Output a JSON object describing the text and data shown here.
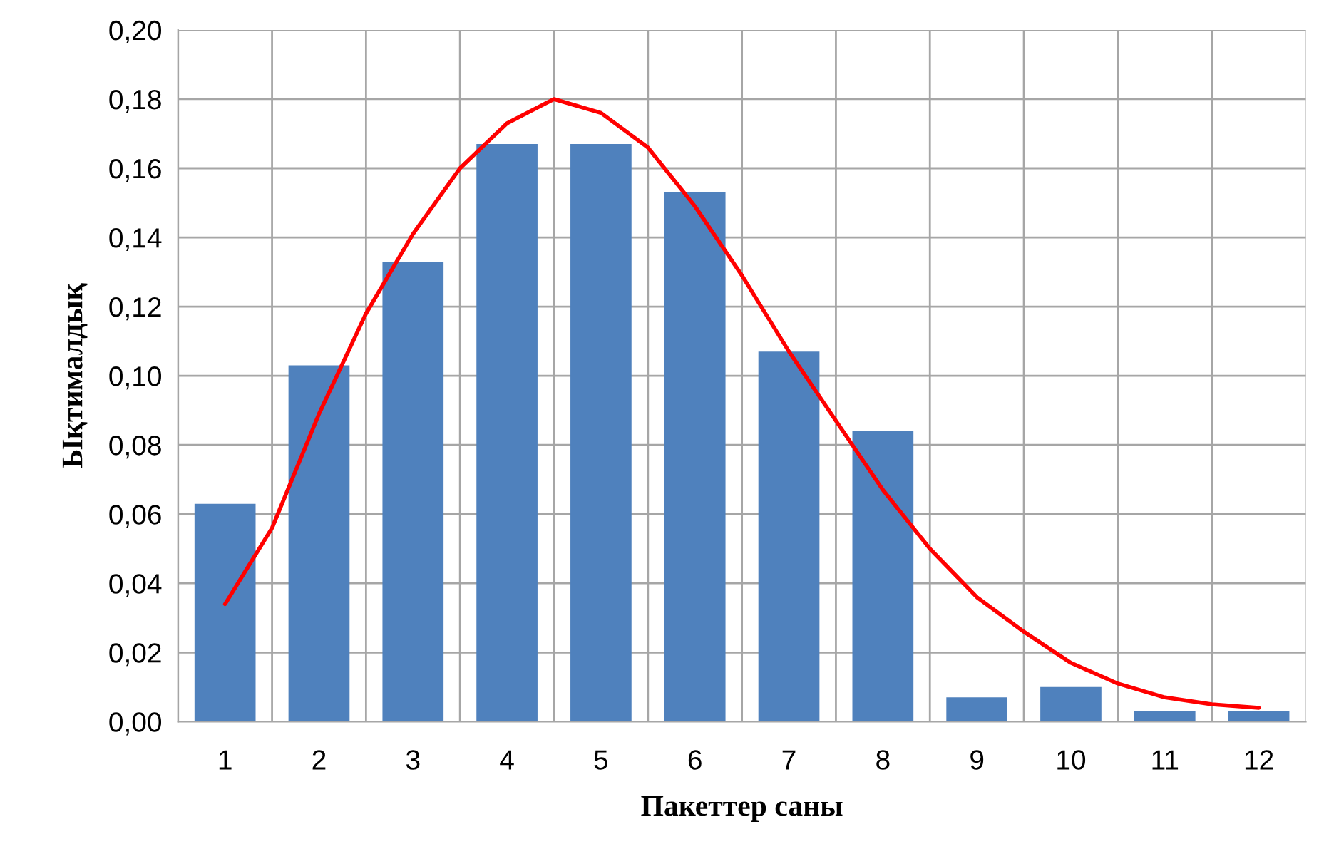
{
  "chart_data": {
    "type": "bar",
    "xlabel": "Пакеттер саны",
    "ylabel": "Ықтималдық",
    "x": [
      1,
      2,
      3,
      4,
      5,
      6,
      7,
      8,
      9,
      10,
      11,
      12
    ],
    "series": [
      {
        "color": "#4f81bd",
        "values": [
          0.063,
          0.103,
          0.133,
          0.167,
          0.167,
          0.153,
          0.107,
          0.084,
          0.007,
          0.01,
          0.003,
          0.003
        ]
      },
      {
        "type": "line",
        "color": "#ff0000",
        "x": [
          1,
          1.5,
          2,
          2.5,
          3,
          3.5,
          4,
          4.5,
          5,
          5.5,
          6,
          6.5,
          7,
          7.5,
          8,
          8.5,
          9,
          9.5,
          10,
          10.5,
          11,
          11.5,
          12
        ],
        "values": [
          0.034,
          0.056,
          0.089,
          0.118,
          0.141,
          0.16,
          0.173,
          0.18,
          0.176,
          0.166,
          0.149,
          0.129,
          0.107,
          0.087,
          0.067,
          0.05,
          0.036,
          0.026,
          0.017,
          0.011,
          0.007,
          0.005,
          0.004
        ]
      }
    ],
    "xlim": [
      0.5,
      12.5
    ],
    "xticks": [
      1,
      2,
      3,
      4,
      5,
      6,
      7,
      8,
      9,
      10,
      11,
      12
    ],
    "ylim": [
      0,
      0.2
    ],
    "yticks": [
      {
        "value": 0,
        "label": "0,00"
      },
      {
        "value": 0.02,
        "label": "0,02"
      },
      {
        "value": 0.04,
        "label": "0,04"
      },
      {
        "value": 0.06,
        "label": "0,06"
      },
      {
        "value": 0.08,
        "label": "0,08"
      },
      {
        "value": 0.1,
        "label": "0,10"
      },
      {
        "value": 0.12,
        "label": "0,12"
      },
      {
        "value": 0.14,
        "label": "0,14"
      },
      {
        "value": 0.16,
        "label": "0,16"
      },
      {
        "value": 0.18,
        "label": "0,18"
      },
      {
        "value": 0.2,
        "label": "0,20"
      }
    ],
    "grid": true,
    "marker": "none",
    "line_style": "solid"
  }
}
